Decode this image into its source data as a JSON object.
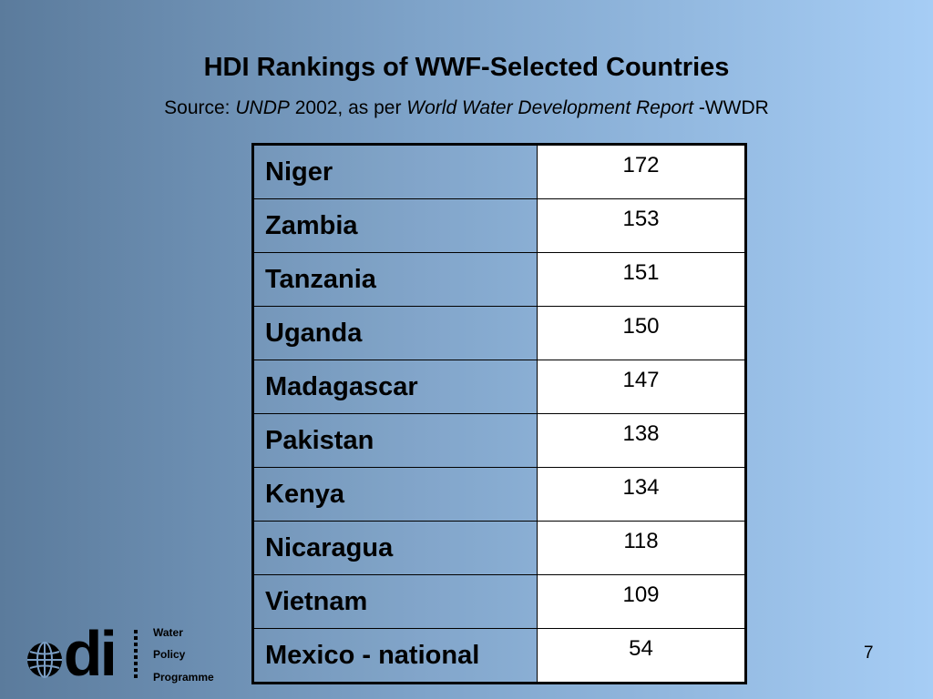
{
  "slide": {
    "title": "HDI Rankings of WWF-Selected Countries",
    "source": {
      "prefix": "Source: ",
      "publisher": "UNDP",
      "year_text": " 2002, as per ",
      "report": "World Water Development Report",
      "suffix": " -WWDR"
    },
    "rows": [
      {
        "country": "Niger",
        "rank": "172"
      },
      {
        "country": "Zambia",
        "rank": "153"
      },
      {
        "country": "Tanzania",
        "rank": "151"
      },
      {
        "country": "Uganda",
        "rank": "150"
      },
      {
        "country": "Madagascar",
        "rank": "147"
      },
      {
        "country": "Pakistan",
        "rank": "138"
      },
      {
        "country": "Kenya",
        "rank": "134"
      },
      {
        "country": "Nicaragua",
        "rank": "118"
      },
      {
        "country": "Vietnam",
        "rank": "109"
      },
      {
        "country": "Mexico - national",
        "rank": "54"
      }
    ],
    "page_number": "7"
  },
  "footer": {
    "logo_text": "odi",
    "logo_icon": "globe-icon",
    "programme_lines": [
      "Water",
      "Policy",
      "Programme"
    ]
  }
}
